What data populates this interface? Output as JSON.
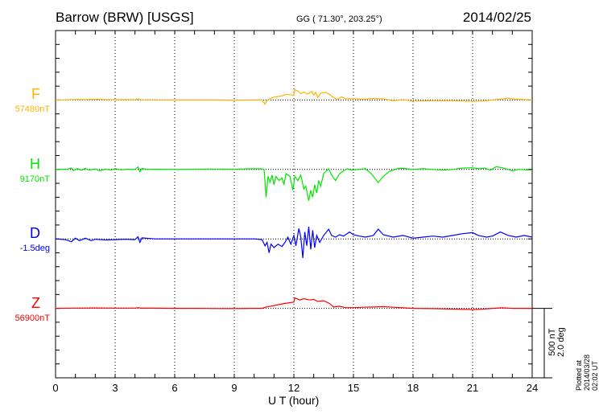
{
  "header": {
    "title": "Barrow (BRW)  [USGS]",
    "coords": "GG ( 71.30°, 203.25°)",
    "date": "2014/02/25"
  },
  "footer": {
    "scale_nt": "500 nT",
    "scale_deg": "2.0 deg",
    "plotted": "Plotted at 2014/03/28 02:02 UT"
  },
  "chart_data": {
    "type": "line",
    "title": "Barrow (BRW)  [USGS]",
    "xlabel": "U T (hour)",
    "xlim": [
      0,
      24
    ],
    "xticks": [
      "0",
      "3",
      "6",
      "9",
      "12",
      "15",
      "18",
      "21",
      "24"
    ],
    "grid": "vertical dotted every 3 hours",
    "scale": {
      "nT_per_bar": 500,
      "deg_per_bar": 2.0
    },
    "series": [
      {
        "name": "F",
        "baseline_label": "57480nT",
        "unit": "nT",
        "color": "#ffb400",
        "points": [
          [
            0,
            0
          ],
          [
            0.5,
            1
          ],
          [
            1,
            4
          ],
          [
            1.5,
            3
          ],
          [
            2,
            5
          ],
          [
            2.5,
            3
          ],
          [
            3,
            2
          ],
          [
            3.5,
            3
          ],
          [
            4,
            2
          ],
          [
            4.2,
            7
          ],
          [
            4.3,
            2
          ],
          [
            5,
            1
          ],
          [
            6,
            0
          ],
          [
            7,
            0
          ],
          [
            8,
            0
          ],
          [
            9,
            -1
          ],
          [
            10,
            0
          ],
          [
            10.4,
            0
          ],
          [
            10.55,
            -30
          ],
          [
            10.65,
            -5
          ],
          [
            10.8,
            10
          ],
          [
            11,
            20
          ],
          [
            11.2,
            25
          ],
          [
            11.4,
            30
          ],
          [
            11.6,
            40
          ],
          [
            11.8,
            38
          ],
          [
            12,
            35
          ],
          [
            12.05,
            75
          ],
          [
            12.2,
            65
          ],
          [
            12.35,
            45
          ],
          [
            12.5,
            58
          ],
          [
            12.7,
            42
          ],
          [
            12.9,
            62
          ],
          [
            13,
            35
          ],
          [
            13.1,
            55
          ],
          [
            13.2,
            18
          ],
          [
            13.35,
            50
          ],
          [
            13.6,
            55
          ],
          [
            13.8,
            40
          ],
          [
            14,
            18
          ],
          [
            14.2,
            5
          ],
          [
            14.4,
            22
          ],
          [
            14.6,
            10
          ],
          [
            15,
            10
          ],
          [
            15.5,
            5
          ],
          [
            16,
            12
          ],
          [
            16.5,
            8
          ],
          [
            17,
            -5
          ],
          [
            17.5,
            3
          ],
          [
            18,
            -8
          ],
          [
            19,
            -5
          ],
          [
            20,
            -5
          ],
          [
            21,
            -10
          ],
          [
            21.5,
            -8
          ],
          [
            22,
            0
          ],
          [
            22.5,
            8
          ],
          [
            22.8,
            14
          ],
          [
            23,
            8
          ],
          [
            23.3,
            5
          ],
          [
            24,
            0
          ]
        ]
      },
      {
        "name": "H",
        "baseline_label": "9170nT",
        "unit": "nT",
        "color": "#00e600",
        "points": [
          [
            0,
            0
          ],
          [
            0.6,
            2
          ],
          [
            0.8,
            10
          ],
          [
            0.9,
            -8
          ],
          [
            1.1,
            6
          ],
          [
            1.3,
            -6
          ],
          [
            1.5,
            8
          ],
          [
            1.7,
            -4
          ],
          [
            2,
            4
          ],
          [
            2.2,
            -10
          ],
          [
            2.5,
            2
          ],
          [
            2.8,
            -4
          ],
          [
            3,
            6
          ],
          [
            3.3,
            -3
          ],
          [
            3.6,
            2
          ],
          [
            4,
            0
          ],
          [
            4.15,
            18
          ],
          [
            4.25,
            -18
          ],
          [
            4.35,
            8
          ],
          [
            4.6,
            0
          ],
          [
            5,
            2
          ],
          [
            6,
            0
          ],
          [
            7,
            2
          ],
          [
            8,
            3
          ],
          [
            9,
            2
          ],
          [
            10,
            5
          ],
          [
            10.4,
            4
          ],
          [
            10.5,
            0
          ],
          [
            10.6,
            -200
          ],
          [
            10.7,
            -50
          ],
          [
            10.8,
            -90
          ],
          [
            10.9,
            -40
          ],
          [
            11,
            -110
          ],
          [
            11.1,
            -50
          ],
          [
            11.25,
            -80
          ],
          [
            11.4,
            -60
          ],
          [
            11.5,
            -110
          ],
          [
            11.6,
            -30
          ],
          [
            11.8,
            -50
          ],
          [
            11.95,
            -150
          ],
          [
            12.05,
            -50
          ],
          [
            12.2,
            -80
          ],
          [
            12.35,
            -40
          ],
          [
            12.5,
            -140
          ],
          [
            12.6,
            -120
          ],
          [
            12.75,
            -225
          ],
          [
            12.85,
            -150
          ],
          [
            12.95,
            -200
          ],
          [
            13.05,
            -110
          ],
          [
            13.15,
            -170
          ],
          [
            13.25,
            -80
          ],
          [
            13.35,
            -120
          ],
          [
            13.5,
            -30
          ],
          [
            13.75,
            5
          ],
          [
            13.9,
            -40
          ],
          [
            14.1,
            -80
          ],
          [
            14.3,
            -30
          ],
          [
            14.5,
            -10
          ],
          [
            14.7,
            5
          ],
          [
            14.9,
            -5
          ],
          [
            15.2,
            0
          ],
          [
            15.6,
            5
          ],
          [
            15.9,
            -30
          ],
          [
            16.25,
            -95
          ],
          [
            16.5,
            -50
          ],
          [
            16.8,
            -15
          ],
          [
            17.2,
            5
          ],
          [
            17.5,
            8
          ],
          [
            18,
            0
          ],
          [
            18.5,
            5
          ],
          [
            19,
            0
          ],
          [
            19.5,
            -5
          ],
          [
            20,
            0
          ],
          [
            20.5,
            10
          ],
          [
            21,
            12
          ],
          [
            21.3,
            5
          ],
          [
            21.6,
            10
          ],
          [
            21.9,
            -5
          ],
          [
            22.2,
            20
          ],
          [
            22.6,
            8
          ],
          [
            23,
            -10
          ],
          [
            23.3,
            0
          ],
          [
            24,
            -5
          ]
        ]
      },
      {
        "name": "D",
        "baseline_label": "-1.5deg",
        "unit": "deg",
        "color": "#0000ff",
        "points": [
          [
            0,
            0
          ],
          [
            0.5,
            -0.02
          ],
          [
            0.8,
            -0.08
          ],
          [
            1,
            0.02
          ],
          [
            1.2,
            -0.05
          ],
          [
            1.5,
            0.02
          ],
          [
            1.8,
            -0.05
          ],
          [
            2,
            -0.01
          ],
          [
            2.5,
            -0.03
          ],
          [
            3,
            -0.02
          ],
          [
            3.5,
            -0.01
          ],
          [
            4,
            -0.02
          ],
          [
            4.15,
            0.06
          ],
          [
            4.25,
            -0.1
          ],
          [
            4.35,
            0.03
          ],
          [
            5,
            0
          ],
          [
            6,
            0
          ],
          [
            7,
            0
          ],
          [
            8,
            0
          ],
          [
            9,
            0
          ],
          [
            10,
            0
          ],
          [
            10.4,
            -0.02
          ],
          [
            10.55,
            -0.2
          ],
          [
            10.65,
            -0.1
          ],
          [
            10.75,
            -0.4
          ],
          [
            10.85,
            -0.15
          ],
          [
            11,
            -0.25
          ],
          [
            11.2,
            -0.15
          ],
          [
            11.4,
            -0.22
          ],
          [
            11.55,
            -0.1
          ],
          [
            11.7,
            0.05
          ],
          [
            11.85,
            -0.15
          ],
          [
            12,
            0.1
          ],
          [
            12.1,
            -0.2
          ],
          [
            12.25,
            0.3
          ],
          [
            12.35,
            0.05
          ],
          [
            12.45,
            -0.55
          ],
          [
            12.55,
            0.2
          ],
          [
            12.65,
            -0.2
          ],
          [
            12.75,
            0.35
          ],
          [
            12.85,
            -0.3
          ],
          [
            12.95,
            0.25
          ],
          [
            13.05,
            -0.25
          ],
          [
            13.15,
            0.1
          ],
          [
            13.3,
            -0.1
          ],
          [
            13.5,
            0.1
          ],
          [
            13.75,
            0.28
          ],
          [
            13.9,
            0.1
          ],
          [
            14.1,
            0.05
          ],
          [
            14.3,
            0.12
          ],
          [
            14.5,
            0.08
          ],
          [
            14.8,
            0.2
          ],
          [
            15,
            0.12
          ],
          [
            15.3,
            0.08
          ],
          [
            15.6,
            0.05
          ],
          [
            16,
            0.1
          ],
          [
            16.25,
            0.28
          ],
          [
            16.5,
            0.12
          ],
          [
            17,
            0.05
          ],
          [
            17.5,
            0.1
          ],
          [
            18,
            0.02
          ],
          [
            18.5,
            0.05
          ],
          [
            19,
            0.08
          ],
          [
            19.5,
            0.05
          ],
          [
            20,
            0.1
          ],
          [
            20.5,
            0.15
          ],
          [
            21,
            0.18
          ],
          [
            21.3,
            0.1
          ],
          [
            21.7,
            0.05
          ],
          [
            22,
            0.08
          ],
          [
            22.4,
            0.2
          ],
          [
            22.8,
            0.1
          ],
          [
            23.2,
            0.05
          ],
          [
            23.6,
            0.1
          ],
          [
            24,
            0.05
          ]
        ]
      },
      {
        "name": "Z",
        "baseline_label": "56900nT",
        "unit": "nT",
        "color": "#ff0000",
        "points": [
          [
            0,
            0
          ],
          [
            1,
            2
          ],
          [
            2,
            3
          ],
          [
            3,
            2
          ],
          [
            4,
            2
          ],
          [
            4.2,
            5
          ],
          [
            4.3,
            1
          ],
          [
            5,
            1
          ],
          [
            6,
            0
          ],
          [
            7,
            0
          ],
          [
            8,
            -1
          ],
          [
            9,
            -2
          ],
          [
            10,
            0
          ],
          [
            10.4,
            0
          ],
          [
            10.6,
            10
          ],
          [
            11,
            20
          ],
          [
            11.5,
            35
          ],
          [
            12,
            45
          ],
          [
            12.05,
            75
          ],
          [
            12.3,
            60
          ],
          [
            12.5,
            70
          ],
          [
            12.8,
            60
          ],
          [
            13,
            65
          ],
          [
            13.2,
            50
          ],
          [
            13.5,
            55
          ],
          [
            13.8,
            35
          ],
          [
            14,
            10
          ],
          [
            14.3,
            15
          ],
          [
            14.6,
            5
          ],
          [
            15,
            5
          ],
          [
            15.5,
            8
          ],
          [
            16,
            10
          ],
          [
            16.5,
            12
          ],
          [
            17,
            8
          ],
          [
            18,
            0
          ],
          [
            19,
            -2
          ],
          [
            20,
            -5
          ],
          [
            21,
            -8
          ],
          [
            21.5,
            -6
          ],
          [
            22,
            0
          ],
          [
            22.5,
            4
          ],
          [
            23,
            0
          ],
          [
            24,
            0
          ]
        ]
      }
    ]
  }
}
